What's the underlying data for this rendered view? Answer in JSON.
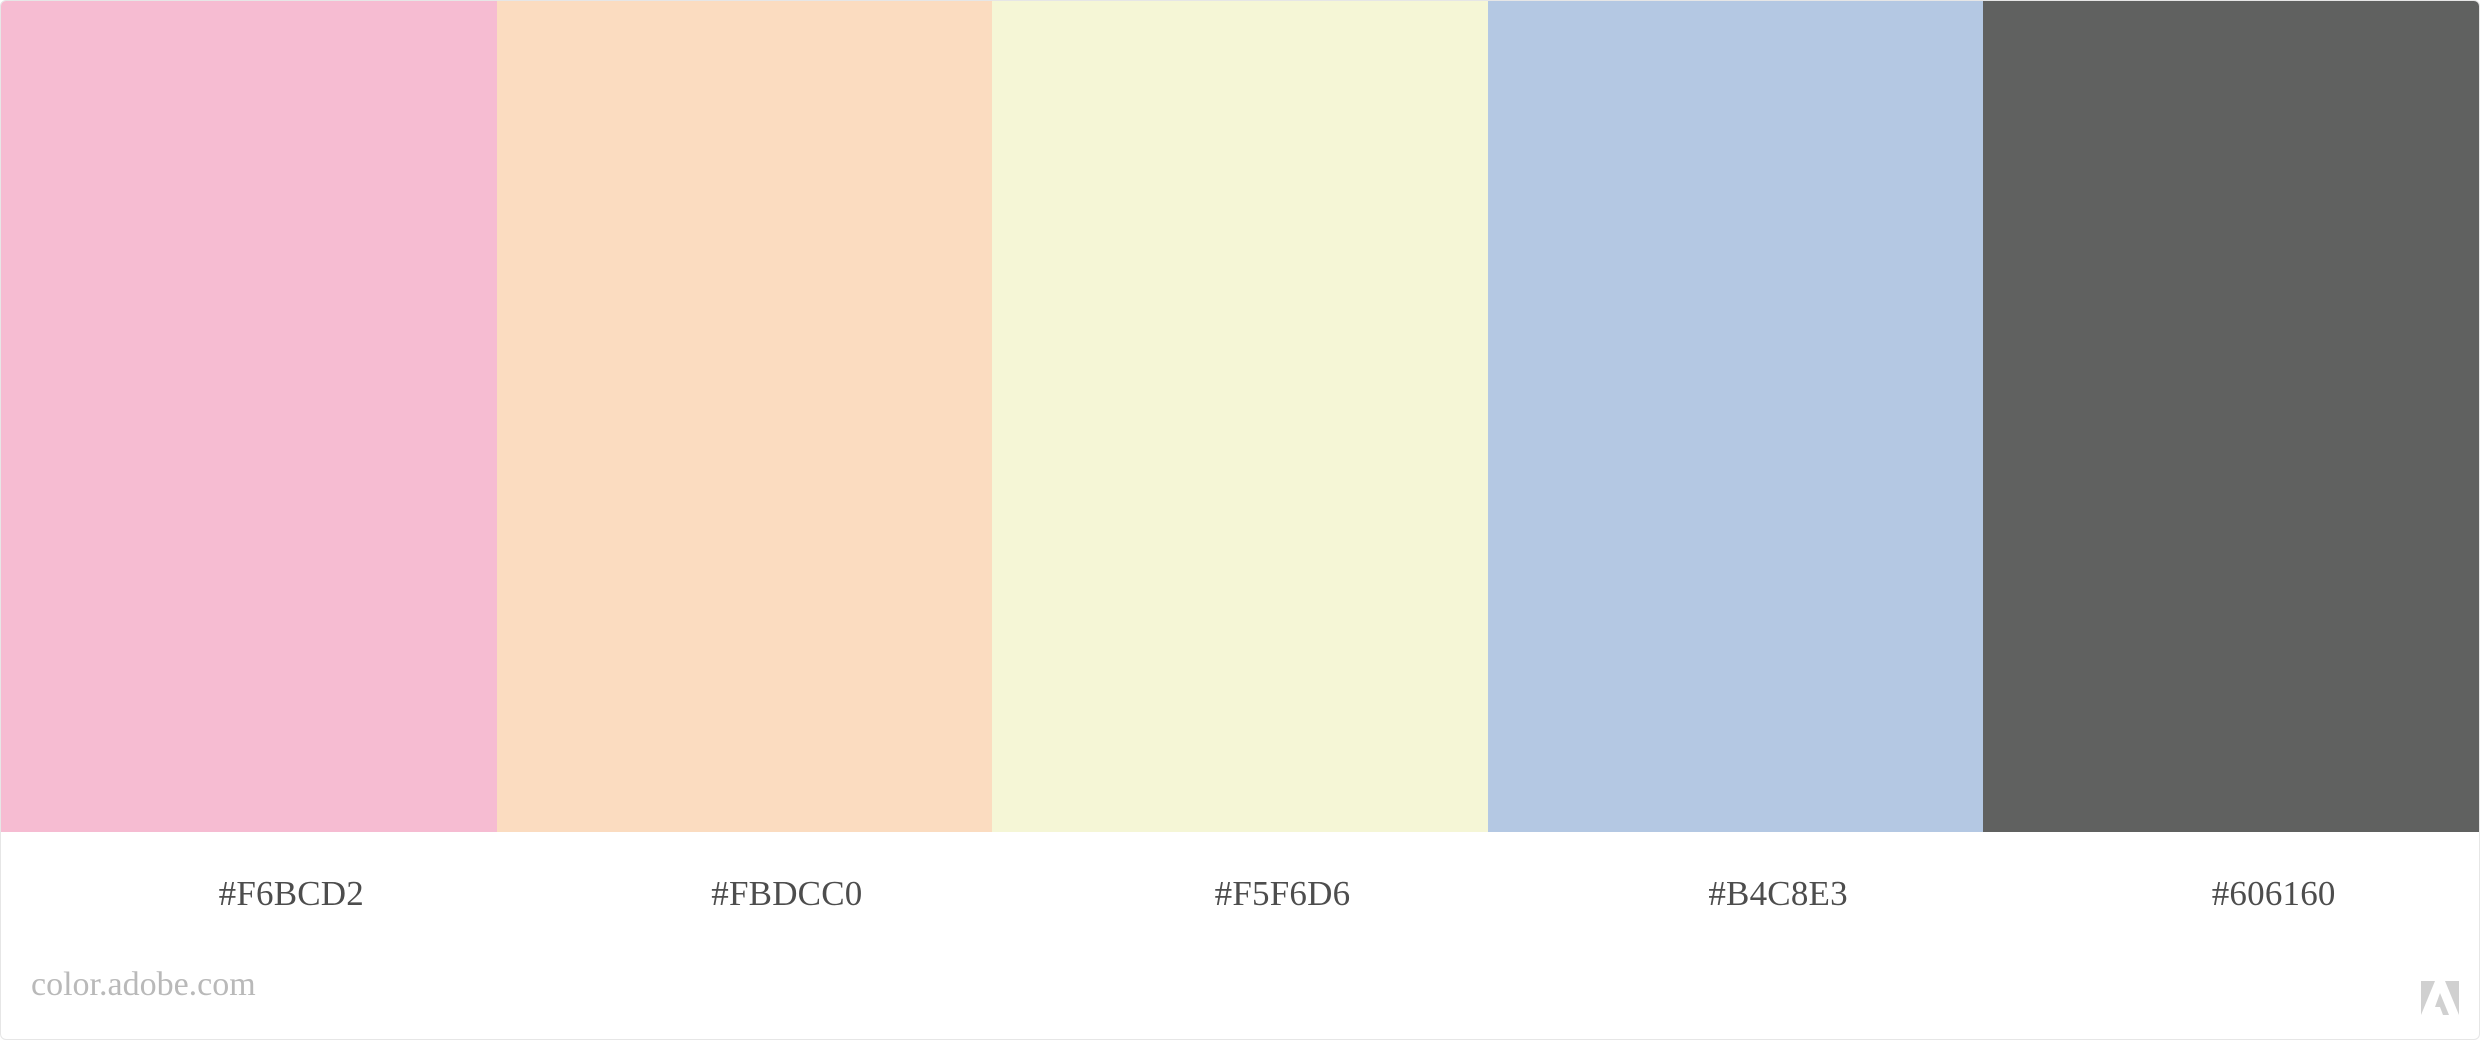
{
  "palette": {
    "swatches": [
      {
        "color": "#F6BCD2",
        "label": "#F6BCD2"
      },
      {
        "color": "#FBDCC0",
        "label": "#FBDCC0"
      },
      {
        "color": "#F5F6D6",
        "label": "#F5F6D6"
      },
      {
        "color": "#B4C8E3",
        "label": "#B4C8E3"
      },
      {
        "color": "#606160",
        "label": "#606160"
      }
    ]
  },
  "footer": {
    "site_label": "color.adobe.com",
    "logo_icon": "adobe-logo-icon",
    "logo_color": "#d0d0d0"
  }
}
